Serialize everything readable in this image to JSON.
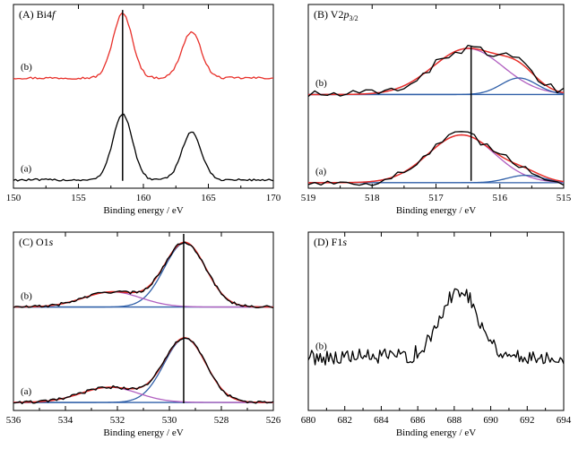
{
  "figure": {
    "xlabel": "Binding energy / eV",
    "colors": {
      "black": "#000000",
      "red": "#e8302a",
      "blue": "#2f5fa8",
      "purple": "#b05fc0"
    }
  },
  "chart_data": [
    {
      "id": "A",
      "type": "line",
      "title_prefix": "(A) Bi4",
      "title_italic": "f",
      "title_sub": "",
      "xlabel": "Binding energy / eV",
      "xlim": [
        150,
        170
      ],
      "x_reversed": false,
      "xticks": [
        150,
        155,
        160,
        165,
        170
      ],
      "vline_x": 158.4,
      "series_labels": [
        "(b)",
        "(a)"
      ],
      "peaks": [
        {
          "label": "(b)",
          "base": 0.6,
          "noise": 0.006,
          "line": "red",
          "components": [
            {
              "c": 158.4,
              "h": 0.35,
              "w": 0.75
            },
            {
              "c": 163.7,
              "h": 0.25,
              "w": 0.75
            }
          ]
        },
        {
          "label": "(a)",
          "base": 0.045,
          "noise": 0.006,
          "line": "black",
          "components": [
            {
              "c": 158.4,
              "h": 0.36,
              "w": 0.75
            },
            {
              "c": 163.7,
              "h": 0.26,
              "w": 0.75
            }
          ]
        }
      ]
    },
    {
      "id": "B",
      "type": "line",
      "title_prefix": "(B) V2",
      "title_italic": "p",
      "title_sub": "3/2",
      "xlabel": "Binding energy / eV",
      "xlim": [
        519,
        515
      ],
      "x_reversed": true,
      "xticks": [
        519,
        518,
        517,
        516,
        515
      ],
      "vline_x": 516.45,
      "series_labels": [
        "(b)",
        "(a)"
      ],
      "peaks": [
        {
          "label": "(b)",
          "base": 0.51,
          "noise": 0.025,
          "line": "black",
          "components": [
            {
              "c": 516.5,
              "h": 0.25,
              "w": 0.55,
              "color": "purple"
            },
            {
              "c": 515.7,
              "h": 0.09,
              "w": 0.28,
              "color": "blue"
            }
          ]
        },
        {
          "label": "(a)",
          "base": 0.03,
          "noise": 0.025,
          "line": "black",
          "components": [
            {
              "c": 516.6,
              "h": 0.26,
              "w": 0.52,
              "color": "purple"
            },
            {
              "c": 515.6,
              "h": 0.04,
              "w": 0.28,
              "color": "blue"
            }
          ]
        }
      ]
    },
    {
      "id": "C",
      "type": "line",
      "title_prefix": "(C) O1",
      "title_italic": "s",
      "title_sub": "",
      "xlabel": "Binding energy / eV",
      "xlim": [
        536,
        526
      ],
      "x_reversed": true,
      "xticks": [
        536,
        534,
        532,
        530,
        528,
        526
      ],
      "vline_x": 529.45,
      "series_labels": [
        "(b)",
        "(a)"
      ],
      "peaks": [
        {
          "label": "(b)",
          "base": 0.58,
          "noise": 0.008,
          "line": "black",
          "components": [
            {
              "c": 529.4,
              "h": 0.36,
              "w": 0.8,
              "color": "blue"
            },
            {
              "c": 532.2,
              "h": 0.085,
              "w": 1.1,
              "color": "purple"
            }
          ]
        },
        {
          "label": "(a)",
          "base": 0.045,
          "noise": 0.008,
          "line": "black",
          "components": [
            {
              "c": 529.4,
              "h": 0.36,
              "w": 0.8,
              "color": "blue"
            },
            {
              "c": 532.3,
              "h": 0.085,
              "w": 1.1,
              "color": "purple"
            }
          ]
        }
      ]
    },
    {
      "id": "D",
      "type": "line",
      "title_prefix": "(D) F1",
      "title_italic": "s",
      "title_sub": "",
      "xlabel": "Binding energy / eV",
      "xlim": [
        680,
        694
      ],
      "x_reversed": false,
      "xticks": [
        680,
        682,
        684,
        686,
        688,
        690,
        692,
        694
      ],
      "vline_x": null,
      "series_labels": [
        "(b)"
      ],
      "peaks": [
        {
          "label": "(b)",
          "base": 0.3,
          "noise": 0.045,
          "line": "black",
          "components": [
            {
              "c": 688.3,
              "h": 0.38,
              "w": 1.0
            }
          ]
        }
      ]
    }
  ]
}
